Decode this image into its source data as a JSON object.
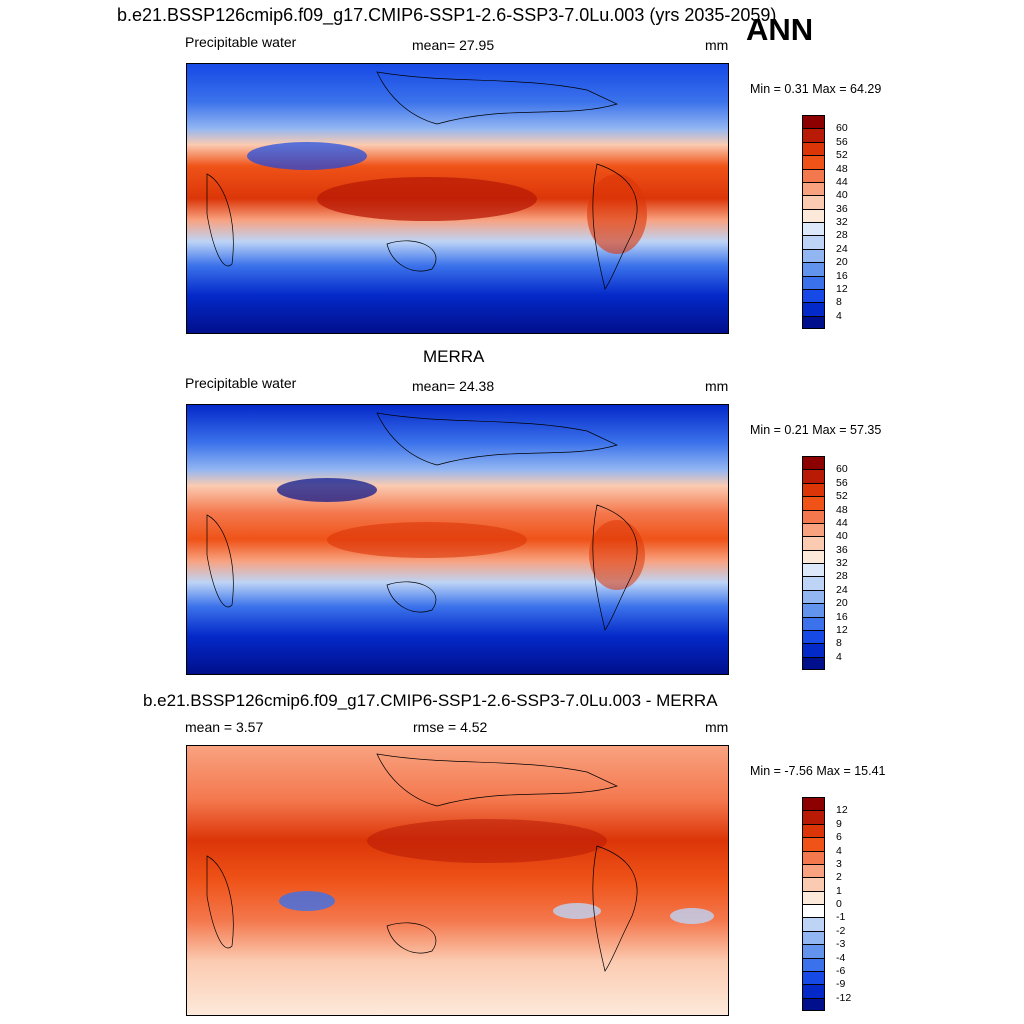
{
  "header": {
    "title": "b.e21.BSSP126cmip6.f09_g17.CMIP6-SSP1-2.6-SSP3-7.0Lu.003 (yrs 2035-2059)",
    "season": "ANN"
  },
  "panels": [
    {
      "id": "model",
      "title": "",
      "left_label": "Precipitable water",
      "center_label": "mean=  27.95",
      "units": "mm",
      "minmax": "Min =   0.31 Max =  64.29",
      "colorbar": {
        "labels": [
          "60",
          "56",
          "52",
          "48",
          "44",
          "40",
          "36",
          "32",
          "28",
          "24",
          "20",
          "16",
          "12",
          "8",
          "4"
        ],
        "colors": [
          "#8c0000",
          "#b81a05",
          "#dc3608",
          "#ef5318",
          "#f4784e",
          "#f8a280",
          "#fbcbb1",
          "#fde9da",
          "#dde9fb",
          "#bdd4f6",
          "#92b6f2",
          "#6294ee",
          "#3b72eb",
          "#1649e6",
          "#0429c9",
          "#000f8c"
        ]
      }
    },
    {
      "id": "obs",
      "title": "MERRA",
      "left_label": "Precipitable water",
      "center_label": "mean=  24.38",
      "units": "mm",
      "minmax": "Min =   0.21 Max =  57.35",
      "colorbar": {
        "labels": [
          "60",
          "56",
          "52",
          "48",
          "44",
          "40",
          "36",
          "32",
          "28",
          "24",
          "20",
          "16",
          "12",
          "8",
          "4"
        ],
        "colors": [
          "#8c0000",
          "#b81a05",
          "#dc3608",
          "#ef5318",
          "#f4784e",
          "#f8a280",
          "#fbcbb1",
          "#fde9da",
          "#dde9fb",
          "#bdd4f6",
          "#92b6f2",
          "#6294ee",
          "#3b72eb",
          "#1649e6",
          "#0429c9",
          "#000f8c"
        ]
      }
    },
    {
      "id": "diff",
      "title": "b.e21.BSSP126cmip6.f09_g17.CMIP6-SSP1-2.6-SSP3-7.0Lu.003 - MERRA",
      "left_label": "mean =   3.57",
      "center_label": "rmse =   4.52",
      "units": "mm",
      "minmax": "Min =  -7.56 Max =  15.41",
      "colorbar": {
        "labels": [
          "12",
          "9",
          "6",
          "4",
          "3",
          "2",
          "1",
          "0",
          "-1",
          "-2",
          "-3",
          "-4",
          "-6",
          "-9",
          "-12"
        ],
        "colors": [
          "#8c0000",
          "#b81a05",
          "#dc3608",
          "#ef5318",
          "#f4784e",
          "#f8a280",
          "#fbcbb1",
          "#fde9da",
          "#ffffff",
          "#bdd4f6",
          "#92b6f2",
          "#6294ee",
          "#3b72eb",
          "#1649e6",
          "#0429c9",
          "#000f8c"
        ]
      }
    }
  ]
}
